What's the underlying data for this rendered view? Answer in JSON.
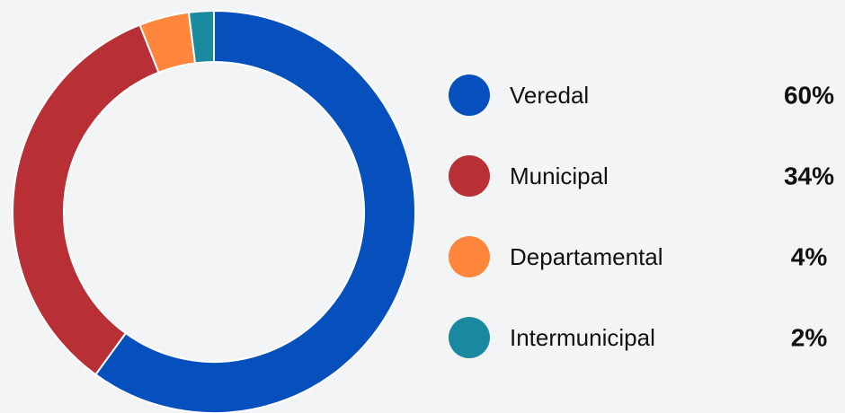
{
  "chart_data": {
    "type": "donut",
    "categories": [
      "Veredal",
      "Municipal",
      "Departamental",
      "Intermunicipal"
    ],
    "values": [
      60,
      34,
      4,
      2
    ],
    "value_labels": [
      "60%",
      "34%",
      "4%",
      "2%"
    ],
    "colors": [
      "#0650bd",
      "#b83035",
      "#ff863a",
      "#1a8aa0"
    ]
  }
}
